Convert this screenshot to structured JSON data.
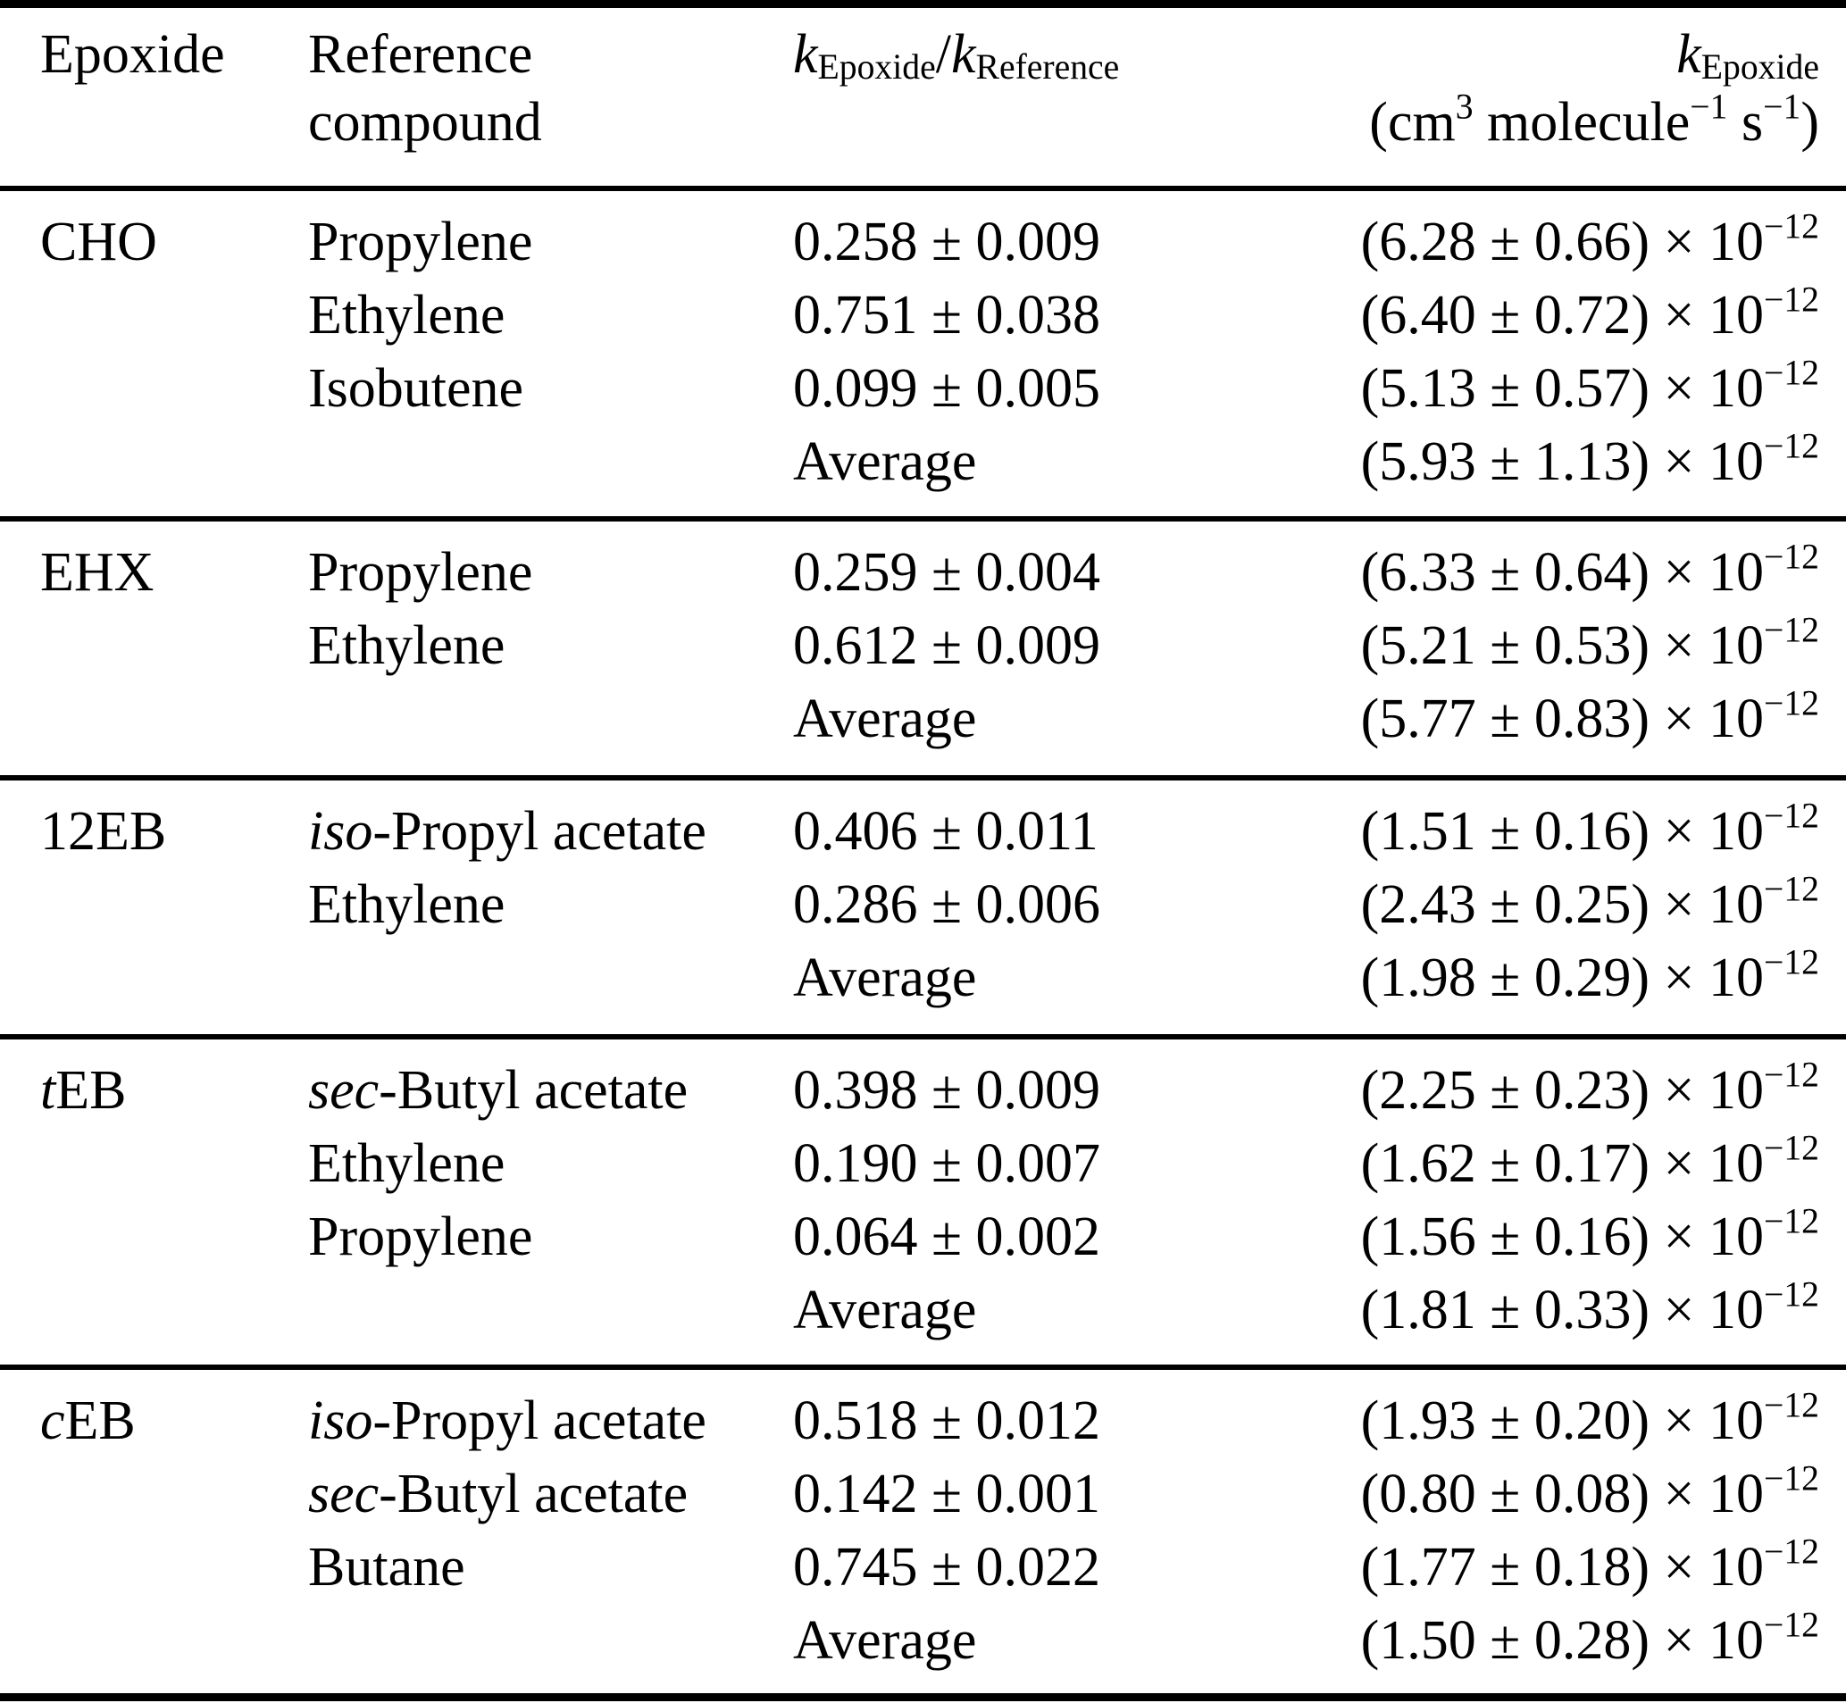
{
  "table": {
    "header": {
      "col1": "Epoxide",
      "col2_line1": "Reference",
      "col2_line2": "compound",
      "col3": {
        "k1": "k",
        "sub1": "Epoxide",
        "slash": "/",
        "k2": "k",
        "sub2": "Reference"
      },
      "col4": {
        "k": "k",
        "sub": "Epoxide",
        "units_open": "(cm",
        "sup1": "3",
        "units_mid": " molecule",
        "sup2": "−1",
        "units_s": " s",
        "sup3": "−1",
        "units_close": ")"
      }
    },
    "blocks": [
      {
        "epoxide": {
          "em": "",
          "rest": "CHO"
        },
        "rows": [
          {
            "ref": {
              "em": "",
              "rest": "Propylene"
            },
            "ratio": "0.258 ± 0.009",
            "k": "(6.28 ± 0.66) × 10",
            "exp": "−12"
          },
          {
            "ref": {
              "em": "",
              "rest": "Ethylene"
            },
            "ratio": "0.751 ± 0.038",
            "k": "(6.40 ± 0.72) × 10",
            "exp": "−12"
          },
          {
            "ref": {
              "em": "",
              "rest": "Isobutene"
            },
            "ratio": "0.099 ± 0.005",
            "k": "(5.13 ± 0.57) × 10",
            "exp": "−12"
          },
          {
            "ref": {
              "em": "",
              "rest": ""
            },
            "ratio": "Average",
            "k": "(5.93 ± 1.13) × 10",
            "exp": "−12"
          }
        ]
      },
      {
        "epoxide": {
          "em": "",
          "rest": "EHX"
        },
        "rows": [
          {
            "ref": {
              "em": "",
              "rest": "Propylene"
            },
            "ratio": "0.259 ± 0.004",
            "k": "(6.33 ± 0.64) × 10",
            "exp": "−12"
          },
          {
            "ref": {
              "em": "",
              "rest": "Ethylene"
            },
            "ratio": "0.612 ± 0.009",
            "k": "(5.21 ± 0.53) × 10",
            "exp": "−12"
          },
          {
            "ref": {
              "em": "",
              "rest": ""
            },
            "ratio": "Average",
            "k": "(5.77 ± 0.83) × 10",
            "exp": "−12"
          }
        ]
      },
      {
        "epoxide": {
          "em": "",
          "rest": "12EB"
        },
        "rows": [
          {
            "ref": {
              "em": "iso",
              "rest": "-Propyl acetate"
            },
            "ratio": "0.406 ± 0.011",
            "k": "(1.51 ± 0.16) × 10",
            "exp": "−12"
          },
          {
            "ref": {
              "em": "",
              "rest": "Ethylene"
            },
            "ratio": "0.286 ± 0.006",
            "k": "(2.43 ± 0.25) × 10",
            "exp": "−12"
          },
          {
            "ref": {
              "em": "",
              "rest": ""
            },
            "ratio": "Average",
            "k": "(1.98 ± 0.29) × 10",
            "exp": "−12"
          }
        ]
      },
      {
        "epoxide": {
          "em": "t",
          "rest": "EB"
        },
        "rows": [
          {
            "ref": {
              "em": "sec",
              "rest": "-Butyl acetate"
            },
            "ratio": "0.398 ± 0.009",
            "k": "(2.25 ± 0.23) × 10",
            "exp": "−12"
          },
          {
            "ref": {
              "em": "",
              "rest": "Ethylene"
            },
            "ratio": "0.190 ± 0.007",
            "k": "(1.62 ± 0.17) × 10",
            "exp": "−12"
          },
          {
            "ref": {
              "em": "",
              "rest": "Propylene"
            },
            "ratio": "0.064 ± 0.002",
            "k": "(1.56 ± 0.16) × 10",
            "exp": "−12"
          },
          {
            "ref": {
              "em": "",
              "rest": ""
            },
            "ratio": "Average",
            "k": "(1.81 ± 0.33) × 10",
            "exp": "−12"
          }
        ]
      },
      {
        "epoxide": {
          "em": "c",
          "rest": "EB"
        },
        "rows": [
          {
            "ref": {
              "em": "iso",
              "rest": "-Propyl acetate"
            },
            "ratio": "0.518 ± 0.012",
            "k": "(1.93 ± 0.20) × 10",
            "exp": "−12"
          },
          {
            "ref": {
              "em": "sec",
              "rest": "-Butyl acetate"
            },
            "ratio": "0.142 ± 0.001",
            "k": "(0.80 ± 0.08) × 10",
            "exp": "−12"
          },
          {
            "ref": {
              "em": "",
              "rest": "Butane"
            },
            "ratio": "0.745 ± 0.022",
            "k": "(1.77 ± 0.18) × 10",
            "exp": "−12"
          },
          {
            "ref": {
              "em": "",
              "rest": ""
            },
            "ratio": "Average",
            "k": "(1.50 ± 0.28) × 10",
            "exp": "−12"
          }
        ]
      }
    ]
  }
}
